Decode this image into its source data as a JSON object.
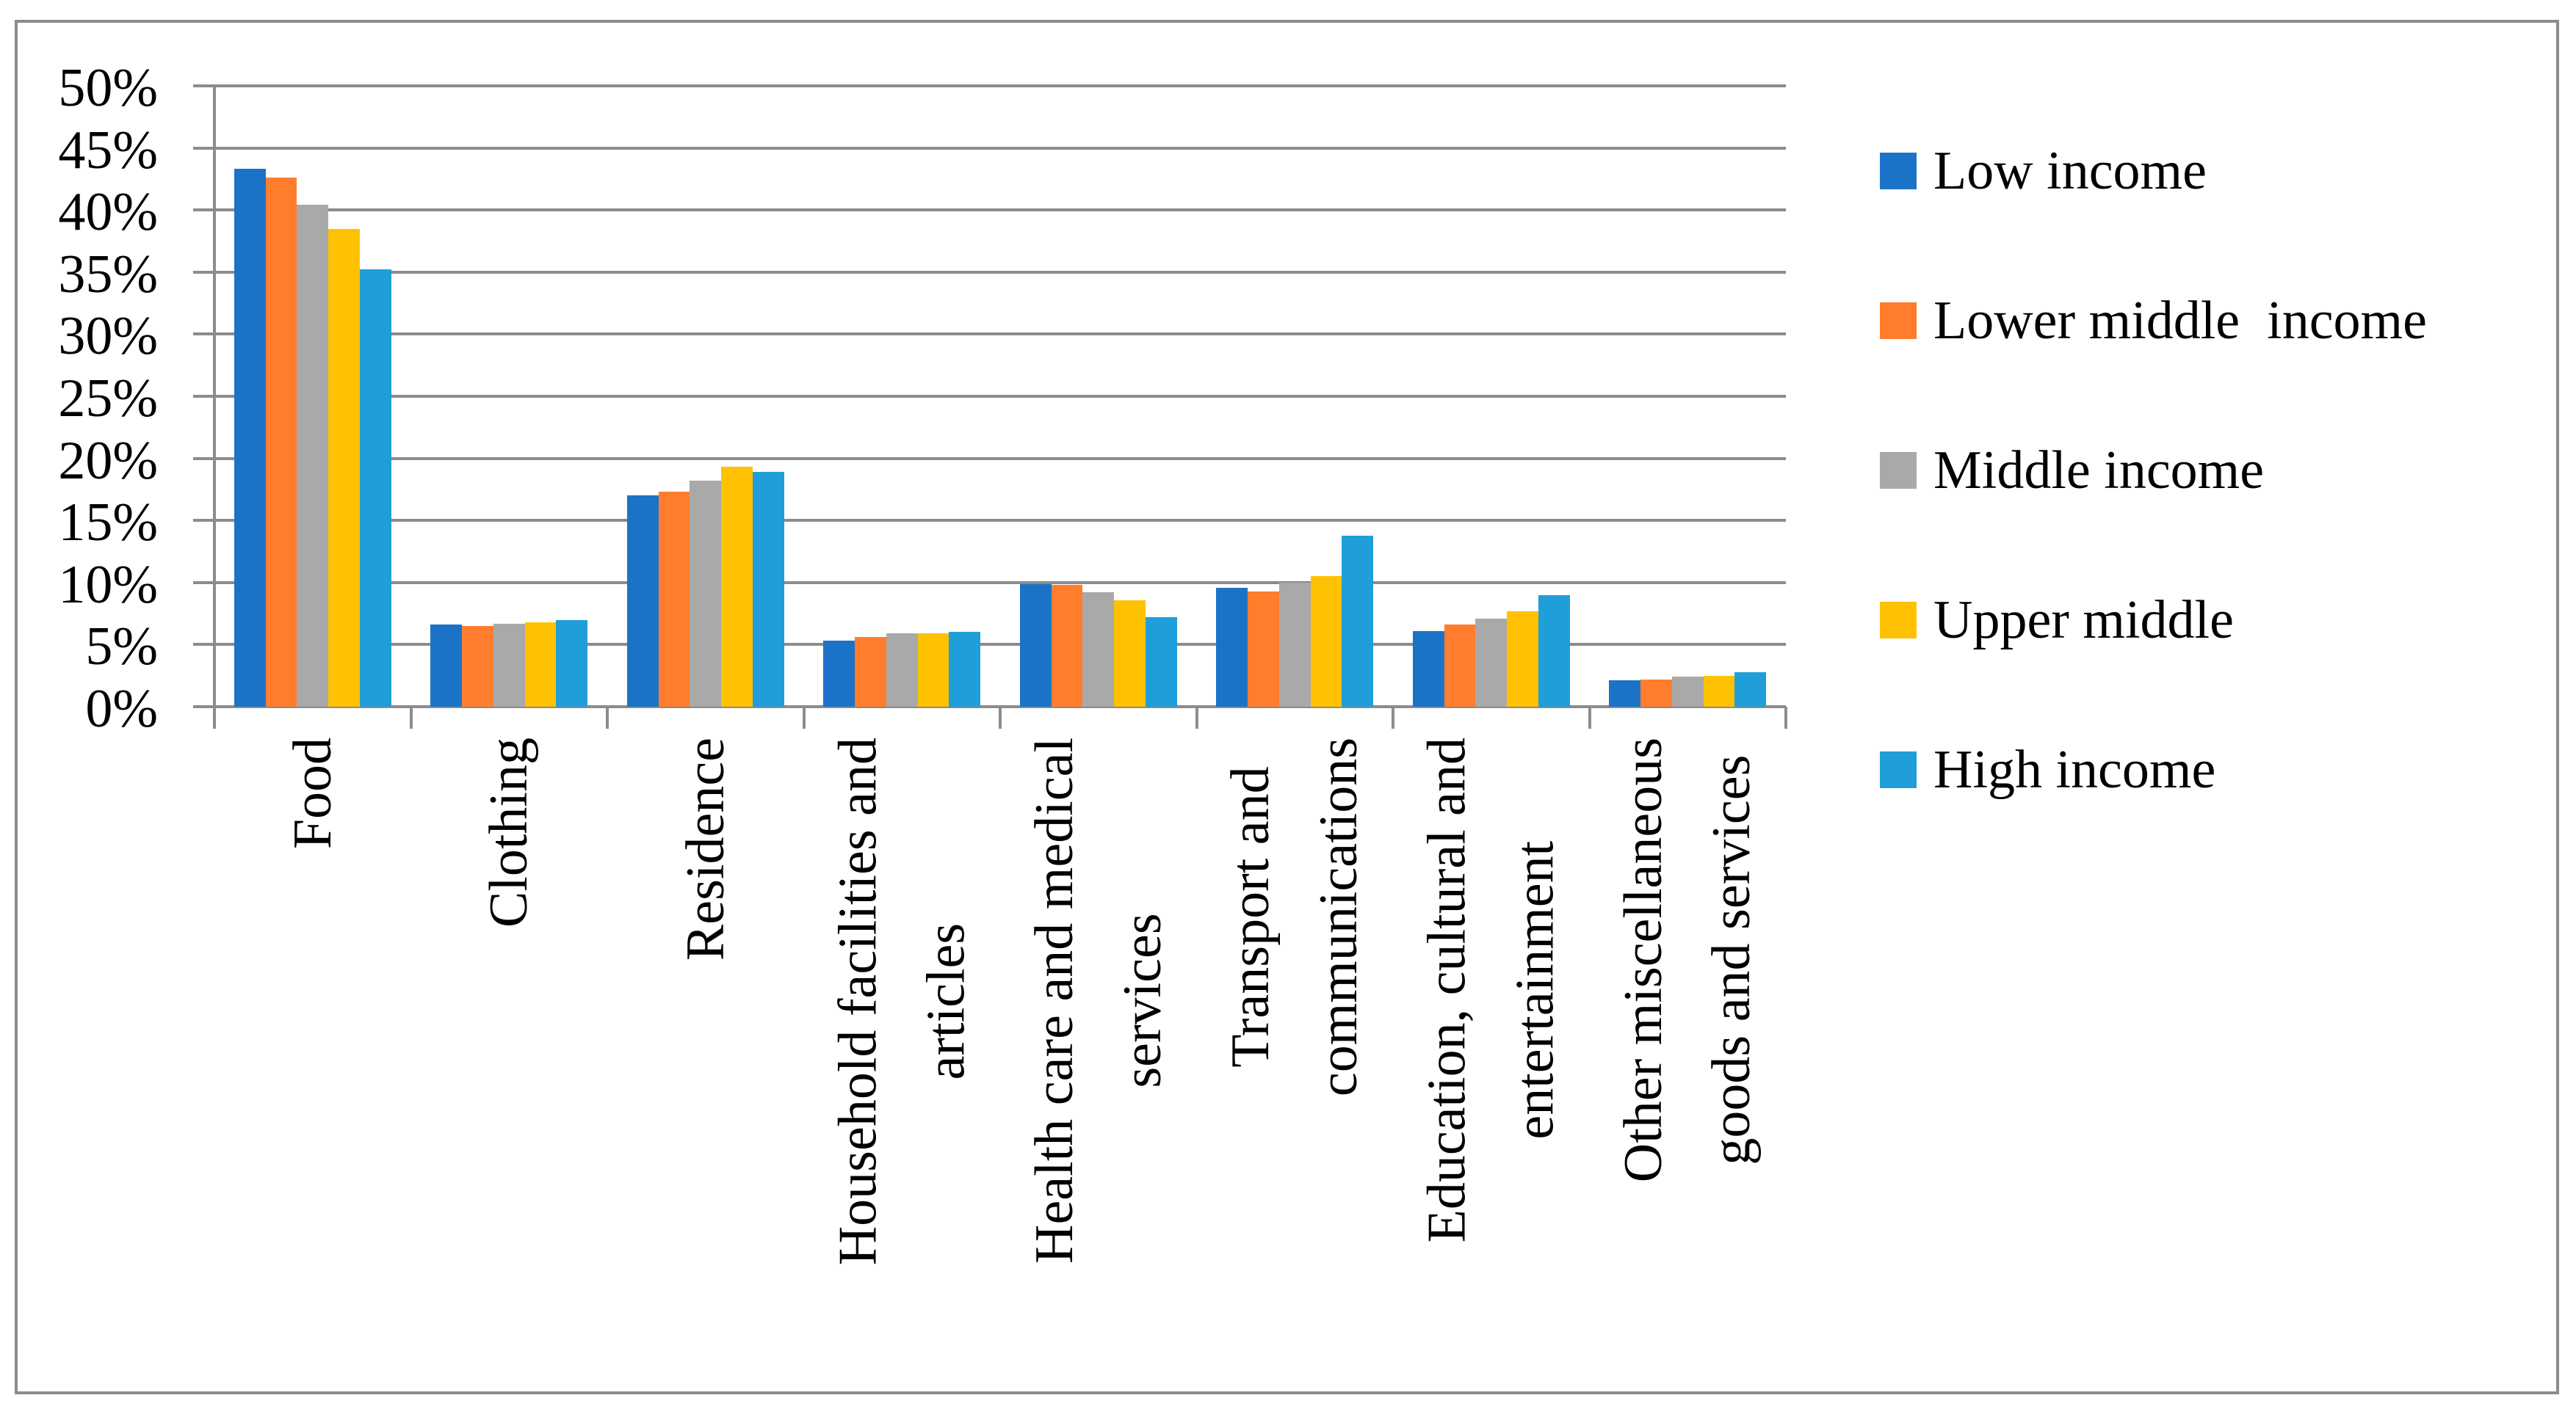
{
  "chart_data": {
    "type": "bar",
    "title": "",
    "categories": [
      "Food",
      "Clothing",
      "Residence",
      "Household facilities and\narticles",
      "Health care and medical\nservices",
      "Transport and\ncommunications",
      "Education, cultural and\nentertainment",
      "Other miscellaneous\ngoods and services"
    ],
    "series": [
      {
        "name": "Low income",
        "color": "#1B73C8",
        "values": [
          43.3,
          6.6,
          17.0,
          5.3,
          9.9,
          9.6,
          6.1,
          2.1
        ]
      },
      {
        "name": "Lower middle  income",
        "color": "#FF7D2D",
        "values": [
          42.6,
          6.5,
          17.3,
          5.6,
          9.8,
          9.3,
          6.6,
          2.2
        ]
      },
      {
        "name": "Middle income",
        "color": "#A9A9AA",
        "values": [
          40.4,
          6.7,
          18.2,
          5.9,
          9.2,
          10.0,
          7.1,
          2.4
        ]
      },
      {
        "name": "Upper middle",
        "color": "#FFC203",
        "values": [
          38.5,
          6.8,
          19.3,
          5.9,
          8.6,
          10.5,
          7.7,
          2.5
        ]
      },
      {
        "name": "High income",
        "color": "#1F9ED9",
        "values": [
          35.2,
          7.0,
          18.9,
          6.0,
          7.2,
          13.8,
          9.0,
          2.8
        ]
      }
    ],
    "ylim": [
      0,
      50
    ],
    "ytick_step": 5,
    "ytick_suffix": "%",
    "grid": true,
    "legend_position": "right",
    "colors": {
      "grid": "#8C8C8C",
      "axis": "#8C8C8C",
      "border": "#8C8C8C",
      "text": "#000000",
      "background": "#FFFFFF"
    }
  }
}
